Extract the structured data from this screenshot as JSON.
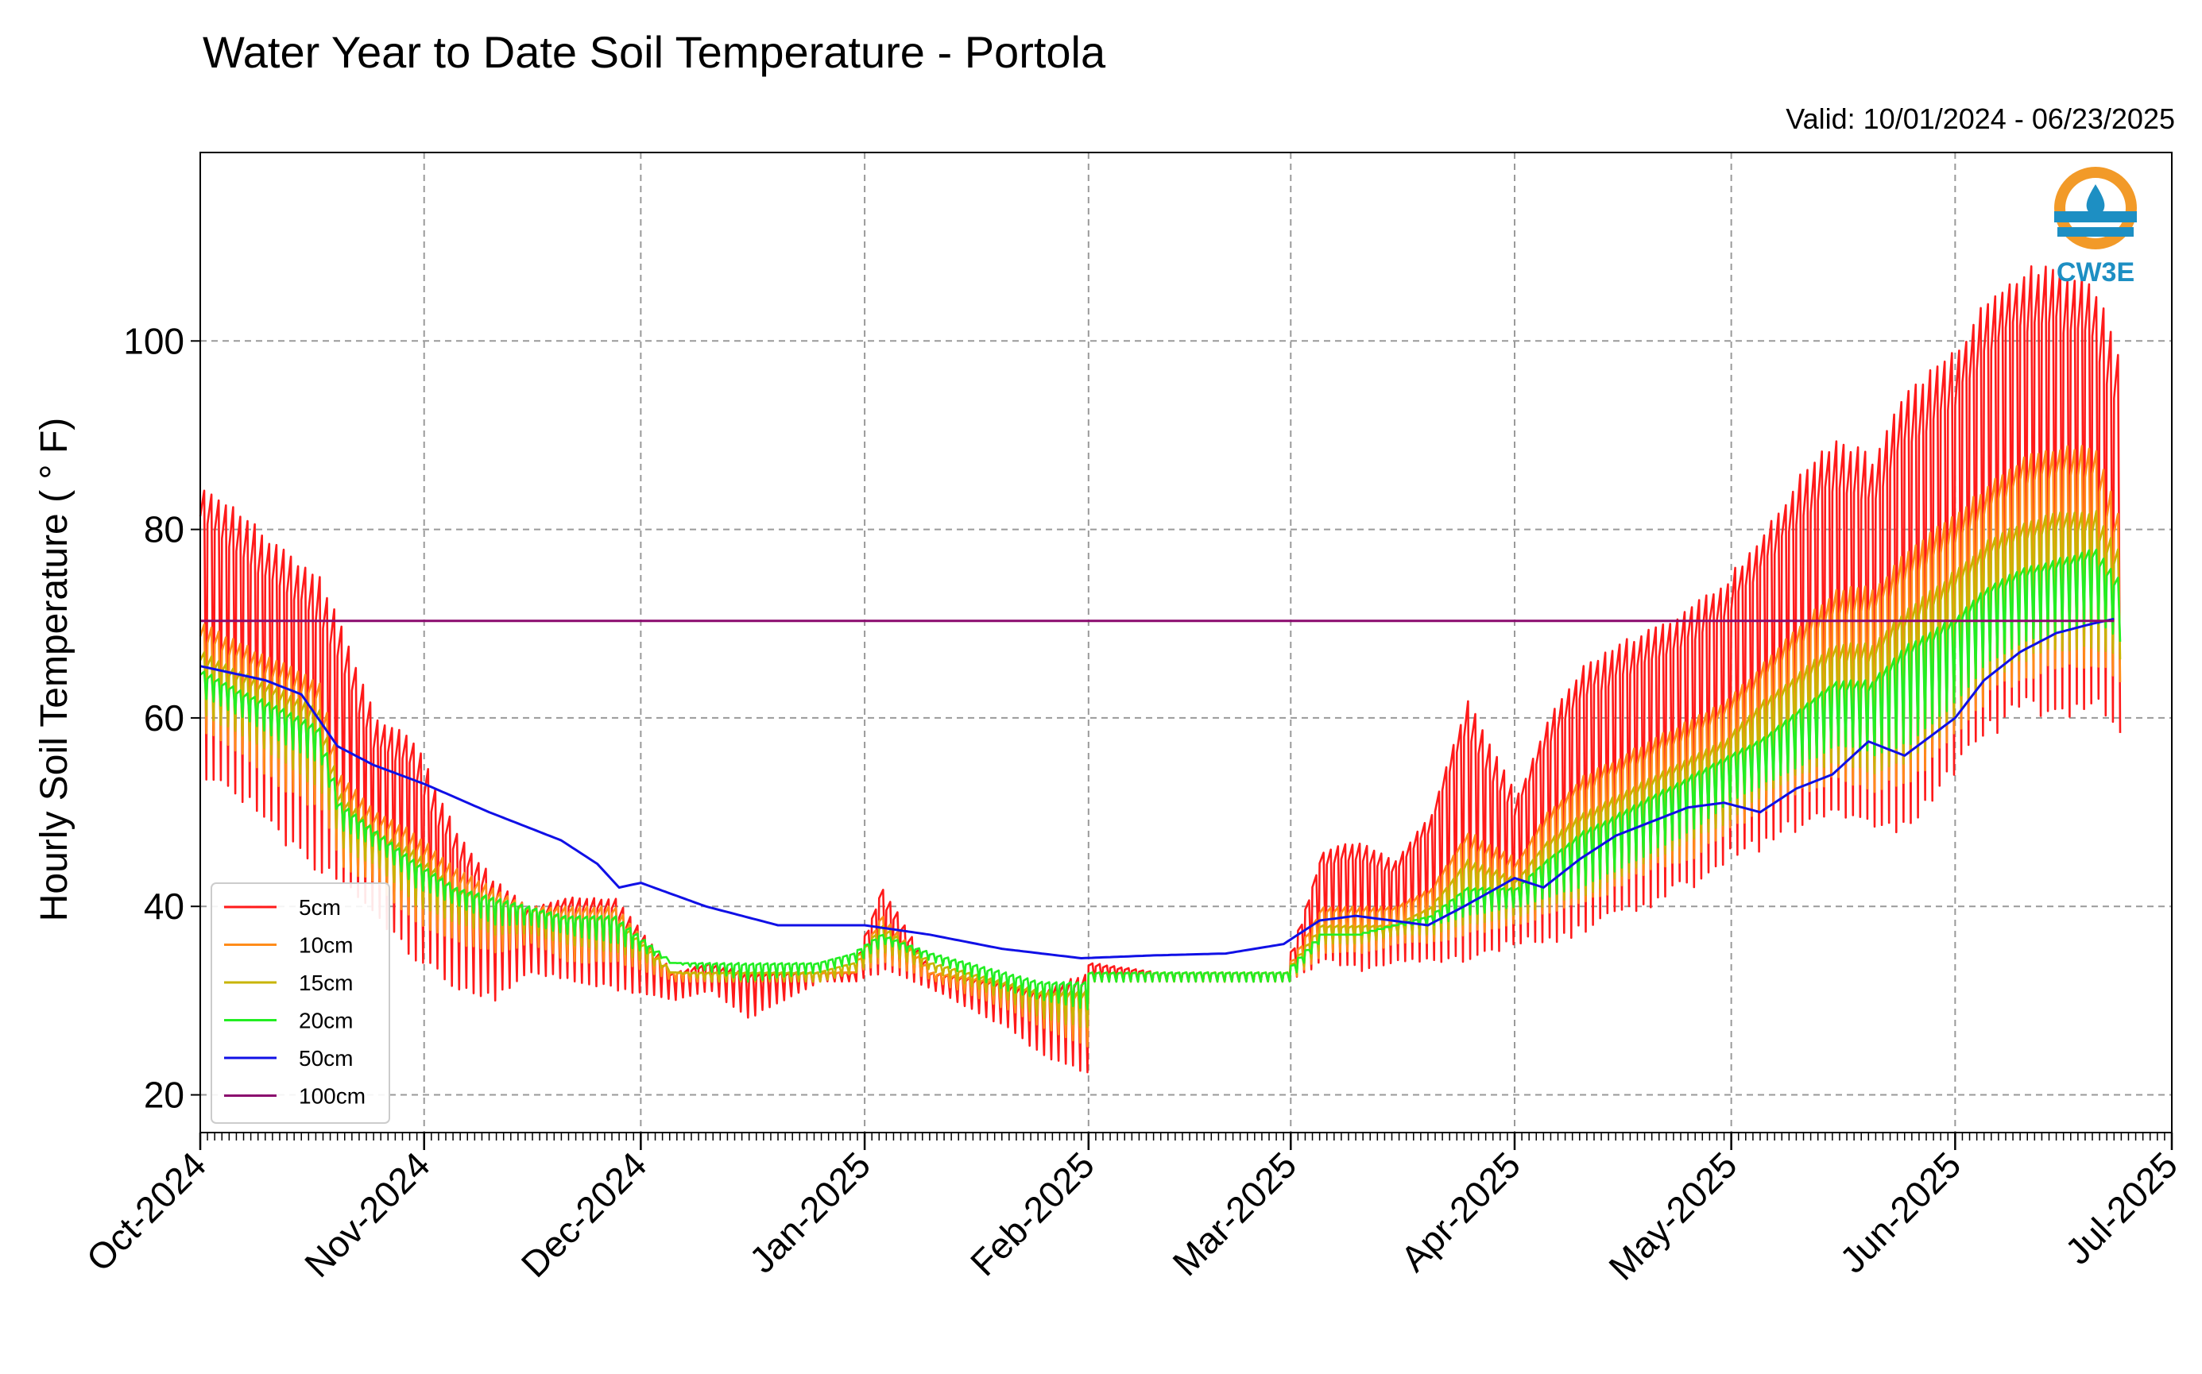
{
  "chart_data": {
    "type": "line",
    "title": "Water Year to Date Soil Temperature - Portola",
    "subtitle": "Valid: 10/01/2024 - 06/23/2025",
    "xlabel": "",
    "ylabel": "Hourly Soil Temperature ( ° F)",
    "x_range": [
      "2024-10-01",
      "2025-07-01"
    ],
    "ylim": [
      16,
      120
    ],
    "y_ticks": [
      20,
      40,
      60,
      80,
      100
    ],
    "x_tick_labels": [
      "Oct-2024",
      "Nov-2024",
      "Dec-2024",
      "Jan-2025",
      "Feb-2025",
      "Mar-2025",
      "Apr-2025",
      "May-2025",
      "Jun-2025",
      "Jul-2025"
    ],
    "x_tick_dates": [
      "2024-10-01",
      "2024-11-01",
      "2024-12-01",
      "2025-01-01",
      "2025-02-01",
      "2025-03-01",
      "2025-04-01",
      "2025-05-01",
      "2025-06-01",
      "2025-07-01"
    ],
    "grid": true,
    "legend_position": "lower-left",
    "logo_text": "CW3E",
    "series_colors": {
      "5cm": "#ff1a1a",
      "10cm": "#ff8c1a",
      "15cm": "#c8b400",
      "20cm": "#22ee22",
      "50cm": "#1010e6",
      "100cm": "#8b0a6e"
    },
    "envelope_note_dates": "each depth shown as a diurnal band between daily min and max (data units, degF)",
    "series": [
      {
        "name": "5cm",
        "color": "#ff1a1a",
        "x": [
          "2024-10-01",
          "2024-10-06",
          "2024-10-12",
          "2024-10-17",
          "2024-10-20",
          "2024-10-25",
          "2024-10-30",
          "2024-11-05",
          "2024-11-10",
          "2024-11-15",
          "2024-11-20",
          "2024-11-27",
          "2024-12-05",
          "2024-12-10",
          "2024-12-15",
          "2024-12-25",
          "2024-12-30",
          "2025-01-03",
          "2025-01-10",
          "2025-01-20",
          "2025-01-25",
          "2025-01-31",
          "2025-02-01",
          "2025-02-10",
          "2025-02-20",
          "2025-02-28",
          "2025-03-05",
          "2025-03-10",
          "2025-03-15",
          "2025-03-20",
          "2025-03-25",
          "2025-04-01",
          "2025-04-05",
          "2025-04-10",
          "2025-04-15",
          "2025-04-20",
          "2025-04-25",
          "2025-04-30",
          "2025-05-05",
          "2025-05-10",
          "2025-05-15",
          "2025-05-20",
          "2025-05-25",
          "2025-06-01",
          "2025-06-05",
          "2025-06-10",
          "2025-06-15",
          "2025-06-20",
          "2025-06-23"
        ],
        "y_low": [
          53,
          51,
          46,
          43,
          42,
          38,
          34,
          31,
          30,
          33,
          32,
          31,
          30,
          31,
          28,
          32,
          32,
          33,
          31,
          27,
          24,
          22,
          32,
          32,
          32,
          32,
          34,
          33,
          34,
          34,
          34,
          36,
          36,
          37,
          39,
          40,
          42,
          45,
          46,
          48,
          50,
          47,
          48,
          54,
          58,
          60,
          60,
          60,
          58
        ],
        "y_high": [
          85,
          82,
          78,
          75,
          70,
          60,
          58,
          48,
          43,
          40,
          41,
          41,
          33,
          34,
          33,
          33,
          33,
          42,
          33,
          32,
          31,
          33,
          34,
          33,
          33,
          33,
          46,
          47,
          45,
          50,
          62,
          52,
          60,
          66,
          68,
          70,
          72,
          75,
          80,
          86,
          90,
          88,
          95,
          100,
          105,
          108,
          108,
          106,
          99
        ]
      },
      {
        "name": "10cm",
        "color": "#ff8c1a",
        "x": [
          "2024-10-01",
          "2024-10-06",
          "2024-10-12",
          "2024-10-17",
          "2024-10-20",
          "2024-10-25",
          "2024-10-30",
          "2024-11-05",
          "2024-11-10",
          "2024-11-15",
          "2024-11-20",
          "2024-11-27",
          "2024-12-05",
          "2024-12-10",
          "2024-12-15",
          "2024-12-25",
          "2024-12-30",
          "2025-01-03",
          "2025-01-10",
          "2025-01-20",
          "2025-01-25",
          "2025-01-31",
          "2025-02-01",
          "2025-02-10",
          "2025-02-20",
          "2025-02-28",
          "2025-03-05",
          "2025-03-10",
          "2025-03-15",
          "2025-03-20",
          "2025-03-25",
          "2025-04-01",
          "2025-04-05",
          "2025-04-10",
          "2025-04-15",
          "2025-04-20",
          "2025-04-25",
          "2025-04-30",
          "2025-05-05",
          "2025-05-10",
          "2025-05-15",
          "2025-05-20",
          "2025-05-25",
          "2025-06-01",
          "2025-06-05",
          "2025-06-10",
          "2025-06-15",
          "2025-06-20",
          "2025-06-23"
        ],
        "y_low": [
          58,
          56,
          52,
          50,
          44,
          42,
          38,
          36,
          35,
          36,
          34,
          34,
          32,
          32,
          32,
          32,
          33,
          34,
          32,
          29,
          27,
          25,
          32,
          32,
          32,
          32,
          35,
          35,
          36,
          36,
          37,
          38,
          39,
          40,
          42,
          44,
          45,
          48,
          50,
          52,
          53,
          52,
          53,
          58,
          62,
          64,
          65,
          65,
          63
        ],
        "y_high": [
          70,
          68,
          66,
          64,
          54,
          50,
          48,
          44,
          42,
          40,
          40,
          40,
          33,
          33,
          33,
          33,
          33,
          39,
          33,
          32,
          31,
          31,
          33,
          33,
          33,
          33,
          40,
          40,
          40,
          42,
          48,
          45,
          50,
          54,
          56,
          58,
          60,
          62,
          66,
          70,
          74,
          74,
          78,
          82,
          85,
          88,
          89,
          89,
          82
        ]
      },
      {
        "name": "15cm",
        "color": "#c8b400",
        "x": [
          "2024-10-01",
          "2024-10-06",
          "2024-10-12",
          "2024-10-17",
          "2024-10-20",
          "2024-10-25",
          "2024-10-30",
          "2024-11-05",
          "2024-11-10",
          "2024-11-15",
          "2024-11-20",
          "2024-11-27",
          "2024-12-05",
          "2024-12-10",
          "2024-12-15",
          "2024-12-25",
          "2024-12-30",
          "2025-01-03",
          "2025-01-10",
          "2025-01-20",
          "2025-01-25",
          "2025-01-31",
          "2025-02-01",
          "2025-02-10",
          "2025-02-20",
          "2025-02-28",
          "2025-03-05",
          "2025-03-10",
          "2025-03-15",
          "2025-03-20",
          "2025-03-25",
          "2025-04-01",
          "2025-04-05",
          "2025-04-10",
          "2025-04-15",
          "2025-04-20",
          "2025-04-25",
          "2025-04-30",
          "2025-05-05",
          "2025-05-10",
          "2025-05-15",
          "2025-05-20",
          "2025-05-25",
          "2025-06-01",
          "2025-06-05",
          "2025-06-10",
          "2025-06-15",
          "2025-06-20",
          "2025-06-23"
        ],
        "y_low": [
          60,
          58,
          55,
          52,
          46,
          44,
          40,
          38,
          37,
          37,
          36,
          35,
          33,
          32,
          32,
          32,
          33,
          35,
          33,
          30,
          28,
          27,
          32,
          32,
          32,
          32,
          36,
          36,
          37,
          37,
          38,
          39,
          40,
          41,
          43,
          45,
          47,
          49,
          52,
          54,
          55,
          54,
          55,
          60,
          64,
          66,
          67,
          67,
          66
        ],
        "y_high": [
          67,
          65,
          63,
          61,
          52,
          48,
          46,
          42,
          41,
          40,
          39,
          39,
          33,
          33,
          33,
          33,
          34,
          38,
          34,
          32,
          31,
          31,
          33,
          33,
          33,
          33,
          38,
          38,
          38,
          40,
          45,
          43,
          47,
          50,
          52,
          54,
          56,
          58,
          62,
          65,
          68,
          68,
          72,
          76,
          79,
          81,
          82,
          82,
          78
        ]
      },
      {
        "name": "20cm",
        "color": "#22ee22",
        "x": [
          "2024-10-01",
          "2024-10-06",
          "2024-10-12",
          "2024-10-17",
          "2024-10-20",
          "2024-10-25",
          "2024-10-30",
          "2024-11-05",
          "2024-11-10",
          "2024-11-15",
          "2024-11-20",
          "2024-11-27",
          "2024-12-05",
          "2024-12-10",
          "2024-12-15",
          "2024-12-25",
          "2024-12-30",
          "2025-01-03",
          "2025-01-10",
          "2025-01-20",
          "2025-01-25",
          "2025-01-31",
          "2025-02-01",
          "2025-02-10",
          "2025-02-20",
          "2025-02-28",
          "2025-03-05",
          "2025-03-10",
          "2025-03-15",
          "2025-03-20",
          "2025-03-25",
          "2025-04-01",
          "2025-04-05",
          "2025-04-10",
          "2025-04-15",
          "2025-04-20",
          "2025-04-25",
          "2025-04-30",
          "2025-05-05",
          "2025-05-10",
          "2025-05-15",
          "2025-05-20",
          "2025-05-25",
          "2025-06-01",
          "2025-06-05",
          "2025-06-10",
          "2025-06-15",
          "2025-06-20",
          "2025-06-23"
        ],
        "y_low": [
          62,
          60,
          57,
          55,
          48,
          46,
          42,
          40,
          38,
          38,
          37,
          36,
          34,
          33,
          32,
          33,
          34,
          36,
          34,
          31,
          30,
          29,
          32,
          32,
          32,
          32,
          37,
          37,
          38,
          38,
          39,
          40,
          41,
          42,
          44,
          46,
          48,
          51,
          53,
          55,
          57,
          56,
          57,
          62,
          66,
          68,
          69,
          70,
          68
        ],
        "y_high": [
          65,
          63,
          61,
          59,
          51,
          48,
          45,
          42,
          41,
          40,
          39,
          39,
          34,
          34,
          34,
          34,
          35,
          37,
          35,
          33,
          32,
          32,
          33,
          33,
          33,
          33,
          37,
          37,
          38,
          39,
          42,
          42,
          45,
          48,
          50,
          52,
          54,
          56,
          58,
          61,
          64,
          64,
          68,
          71,
          74,
          76,
          77,
          78,
          75
        ]
      },
      {
        "name": "50cm",
        "color": "#1010e6",
        "x": [
          "2024-10-01",
          "2024-10-10",
          "2024-10-15",
          "2024-10-20",
          "2024-10-25",
          "2024-11-01",
          "2024-11-10",
          "2024-11-20",
          "2024-11-25",
          "2024-11-28",
          "2024-12-01",
          "2024-12-10",
          "2024-12-20",
          "2025-01-01",
          "2025-01-10",
          "2025-01-20",
          "2025-01-31",
          "2025-02-10",
          "2025-02-20",
          "2025-02-28",
          "2025-03-05",
          "2025-03-10",
          "2025-03-15",
          "2025-03-20",
          "2025-03-25",
          "2025-04-01",
          "2025-04-05",
          "2025-04-10",
          "2025-04-15",
          "2025-04-20",
          "2025-04-25",
          "2025-04-30",
          "2025-05-05",
          "2025-05-10",
          "2025-05-15",
          "2025-05-20",
          "2025-05-25",
          "2025-06-01",
          "2025-06-05",
          "2025-06-10",
          "2025-06-15",
          "2025-06-20",
          "2025-06-23"
        ],
        "y": [
          65.5,
          64,
          62.5,
          57,
          55,
          53,
          50,
          47,
          44.5,
          42,
          42.5,
          40,
          38,
          38,
          37,
          35.5,
          34.5,
          34.8,
          35,
          36,
          38.5,
          39,
          38.5,
          38,
          40,
          43,
          42,
          45,
          47.5,
          49,
          50.5,
          51,
          50,
          52.5,
          54,
          57.5,
          56,
          60,
          64,
          67,
          69,
          70,
          70.5
        ]
      },
      {
        "name": "100cm",
        "color": "#8b0a6e",
        "x": [
          "2024-10-01",
          "2025-06-23"
        ],
        "y": [
          70.3,
          70.3
        ]
      }
    ]
  }
}
